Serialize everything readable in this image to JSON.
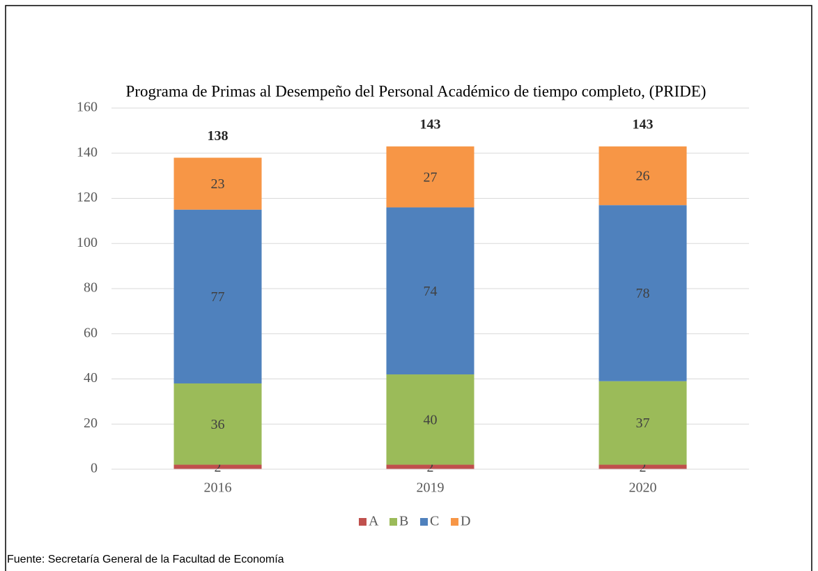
{
  "chart_data": {
    "type": "stacked_bar",
    "title": "Programa de Primas al Desempeño del Personal Académico de tiempo completo, (PRIDE)",
    "categories": [
      "2016",
      "2019",
      "2020"
    ],
    "series": [
      {
        "name": "A",
        "color": "#c0504d",
        "values": [
          2,
          2,
          2
        ]
      },
      {
        "name": "B",
        "color": "#9bbb59",
        "values": [
          36,
          40,
          37
        ]
      },
      {
        "name": "C",
        "color": "#4f81bd",
        "values": [
          77,
          74,
          78
        ]
      },
      {
        "name": "D",
        "color": "#f79646",
        "values": [
          23,
          27,
          26
        ]
      }
    ],
    "totals": [
      138,
      143,
      143
    ],
    "ylim": [
      0,
      160
    ],
    "yticks": [
      0,
      20,
      40,
      60,
      80,
      100,
      120,
      140,
      160
    ],
    "grid": true,
    "legend": "bottom"
  },
  "footnote": "Fuente: Secretaría General de la Facultad de Economía"
}
